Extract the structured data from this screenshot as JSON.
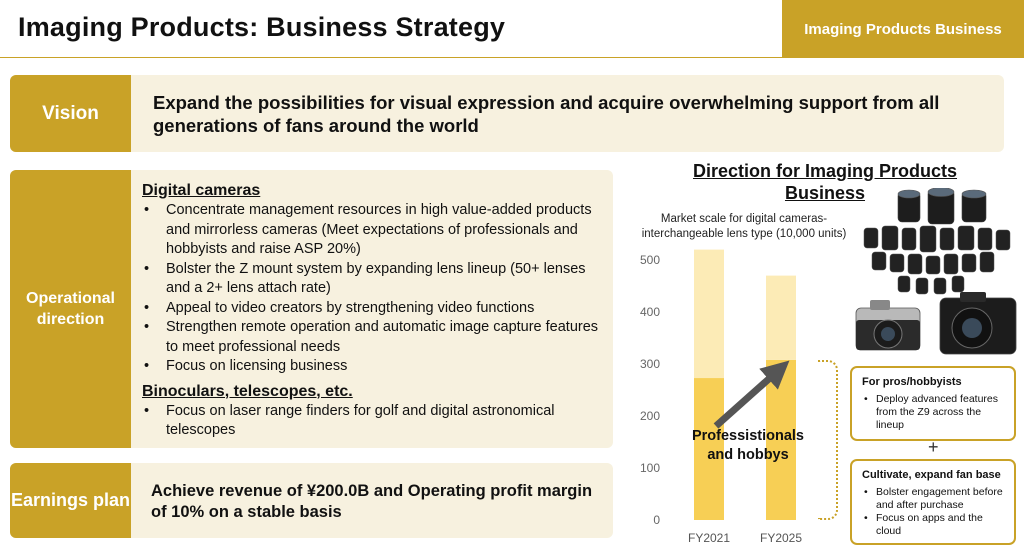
{
  "header": {
    "title": "Imaging Products: Business Strategy",
    "business_tab": "Imaging Products Business"
  },
  "vision": {
    "label": "Vision",
    "text": "Expand the possibilities for visual expression and acquire overwhelming support from all generations of fans around the world"
  },
  "operational": {
    "label": "Operational direction",
    "sections": [
      {
        "heading": "Digital cameras",
        "items": [
          "Concentrate management resources in high value-added products and mirrorless cameras (Meet expectations of professionals and hobbyists and raise ASP 20%)",
          "Bolster the Z mount system by expanding lens lineup (50+ lenses and a 2+ lens attach rate)",
          "Appeal to video creators by strengthening video functions",
          "Strengthen remote operation and automatic image capture features to meet professional needs",
          "Focus on licensing business"
        ]
      },
      {
        "heading": "Binoculars, telescopes, etc.",
        "items": [
          "Focus on laser range finders for golf and digital astronomical telescopes"
        ]
      }
    ]
  },
  "earnings": {
    "label": "Earnings plan",
    "text": "Achieve revenue of ¥200.0B and Operating profit margin of 10% on a stable basis"
  },
  "direction": {
    "title": "Direction for Imaging Products Business",
    "segment_label": "Professistionals and hobbys",
    "pros_box": {
      "title": "For pros/hobbyists",
      "items": [
        "Deploy advanced features from the Z9 across the lineup"
      ]
    },
    "plus": "+",
    "fan_box": {
      "title": "Cultivate, expand fan base",
      "items": [
        "Bolster engagement before and after purchase",
        "Focus on apps and the cloud"
      ]
    }
  },
  "chart_data": {
    "type": "bar",
    "stacked": true,
    "subtitle": "Market scale for digital cameras-interchangeable lens type (10,000 units)",
    "categories": [
      "FY2021",
      "FY2025"
    ],
    "series": [
      {
        "values": [
          273,
          308
        ],
        "color": "#f7cf55"
      },
      {
        "values": [
          247,
          162
        ],
        "color": "#fcebb6"
      }
    ],
    "ylim": [
      0,
      500
    ],
    "yticks": [
      0,
      100,
      200,
      300,
      400,
      500
    ],
    "grid": false,
    "annotation": "arrow from FY2021 lower segment to FY2025 lower segment"
  },
  "colors": {
    "accent": "#c9a227",
    "panel": "#f7f1df",
    "bar_lower": "#f7cf55",
    "bar_upper": "#fcebb6"
  }
}
